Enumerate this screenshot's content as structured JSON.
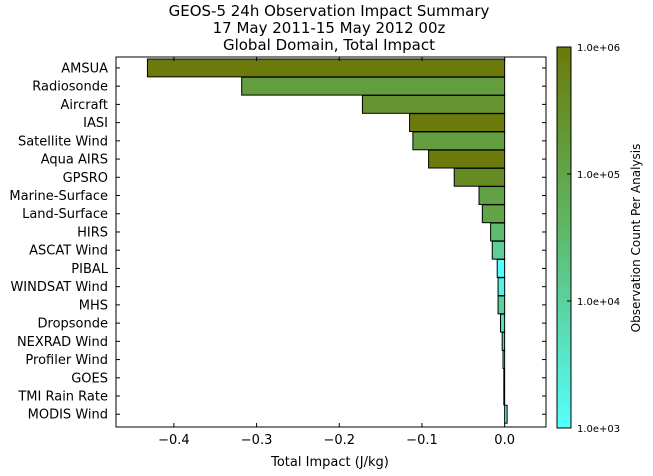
{
  "chart_data": {
    "type": "bar",
    "orientation": "horizontal",
    "title_lines": [
      "GEOS-5 24h Observation Impact Summary",
      "17 May 2011-15 May 2012 00z",
      "Global Domain, Total Impact"
    ],
    "xlabel": "Total Impact (J/kg)",
    "ylabel": "",
    "xlim": [
      -0.47,
      0.05
    ],
    "xticks": [
      -0.4,
      -0.3,
      -0.2,
      -0.1,
      0.0
    ],
    "xtick_labels": [
      "−0.4",
      "−0.3",
      "−0.2",
      "−0.1",
      "0.0"
    ],
    "categories": [
      "AMSUA",
      "Radiosonde",
      "Aircraft",
      "IASI",
      "Satellite Wind",
      "Aqua AIRS",
      "GPSRO",
      "Marine-Surface",
      "Land-Surface",
      "HIRS",
      "ASCAT Wind",
      "PIBAL",
      "WINDSAT Wind",
      "MHS",
      "Dropsonde",
      "NEXRAD Wind",
      "Profiler Wind",
      "GOES",
      "TMI Rain Rate",
      "MODIS Wind"
    ],
    "values": [
      -0.432,
      -0.318,
      -0.172,
      -0.115,
      -0.111,
      -0.092,
      -0.061,
      -0.031,
      -0.027,
      -0.017,
      -0.015,
      -0.009,
      -0.008,
      -0.008,
      -0.005,
      -0.003,
      -0.002,
      -0.001,
      -0.001,
      0.003
    ],
    "observation_counts": [
      1000000,
      150000,
      250000,
      1000000,
      150000,
      1000000,
      400000,
      120000,
      100000,
      30000,
      12000,
      1000,
      2000,
      10000,
      5000,
      10000,
      3000,
      50000,
      30000,
      2000
    ],
    "colorbar": {
      "label": "Observation Count Per Analysis",
      "scale": "log",
      "range": [
        1000,
        1000000
      ],
      "tick_labels": [
        "1.0e+06",
        "1.0e+05",
        "1.0e+04",
        "1.0e+03"
      ],
      "color_low": "#55ffff",
      "color_mid": "#5fb45f",
      "color_high": "#6b7a0a"
    },
    "grid": false
  }
}
